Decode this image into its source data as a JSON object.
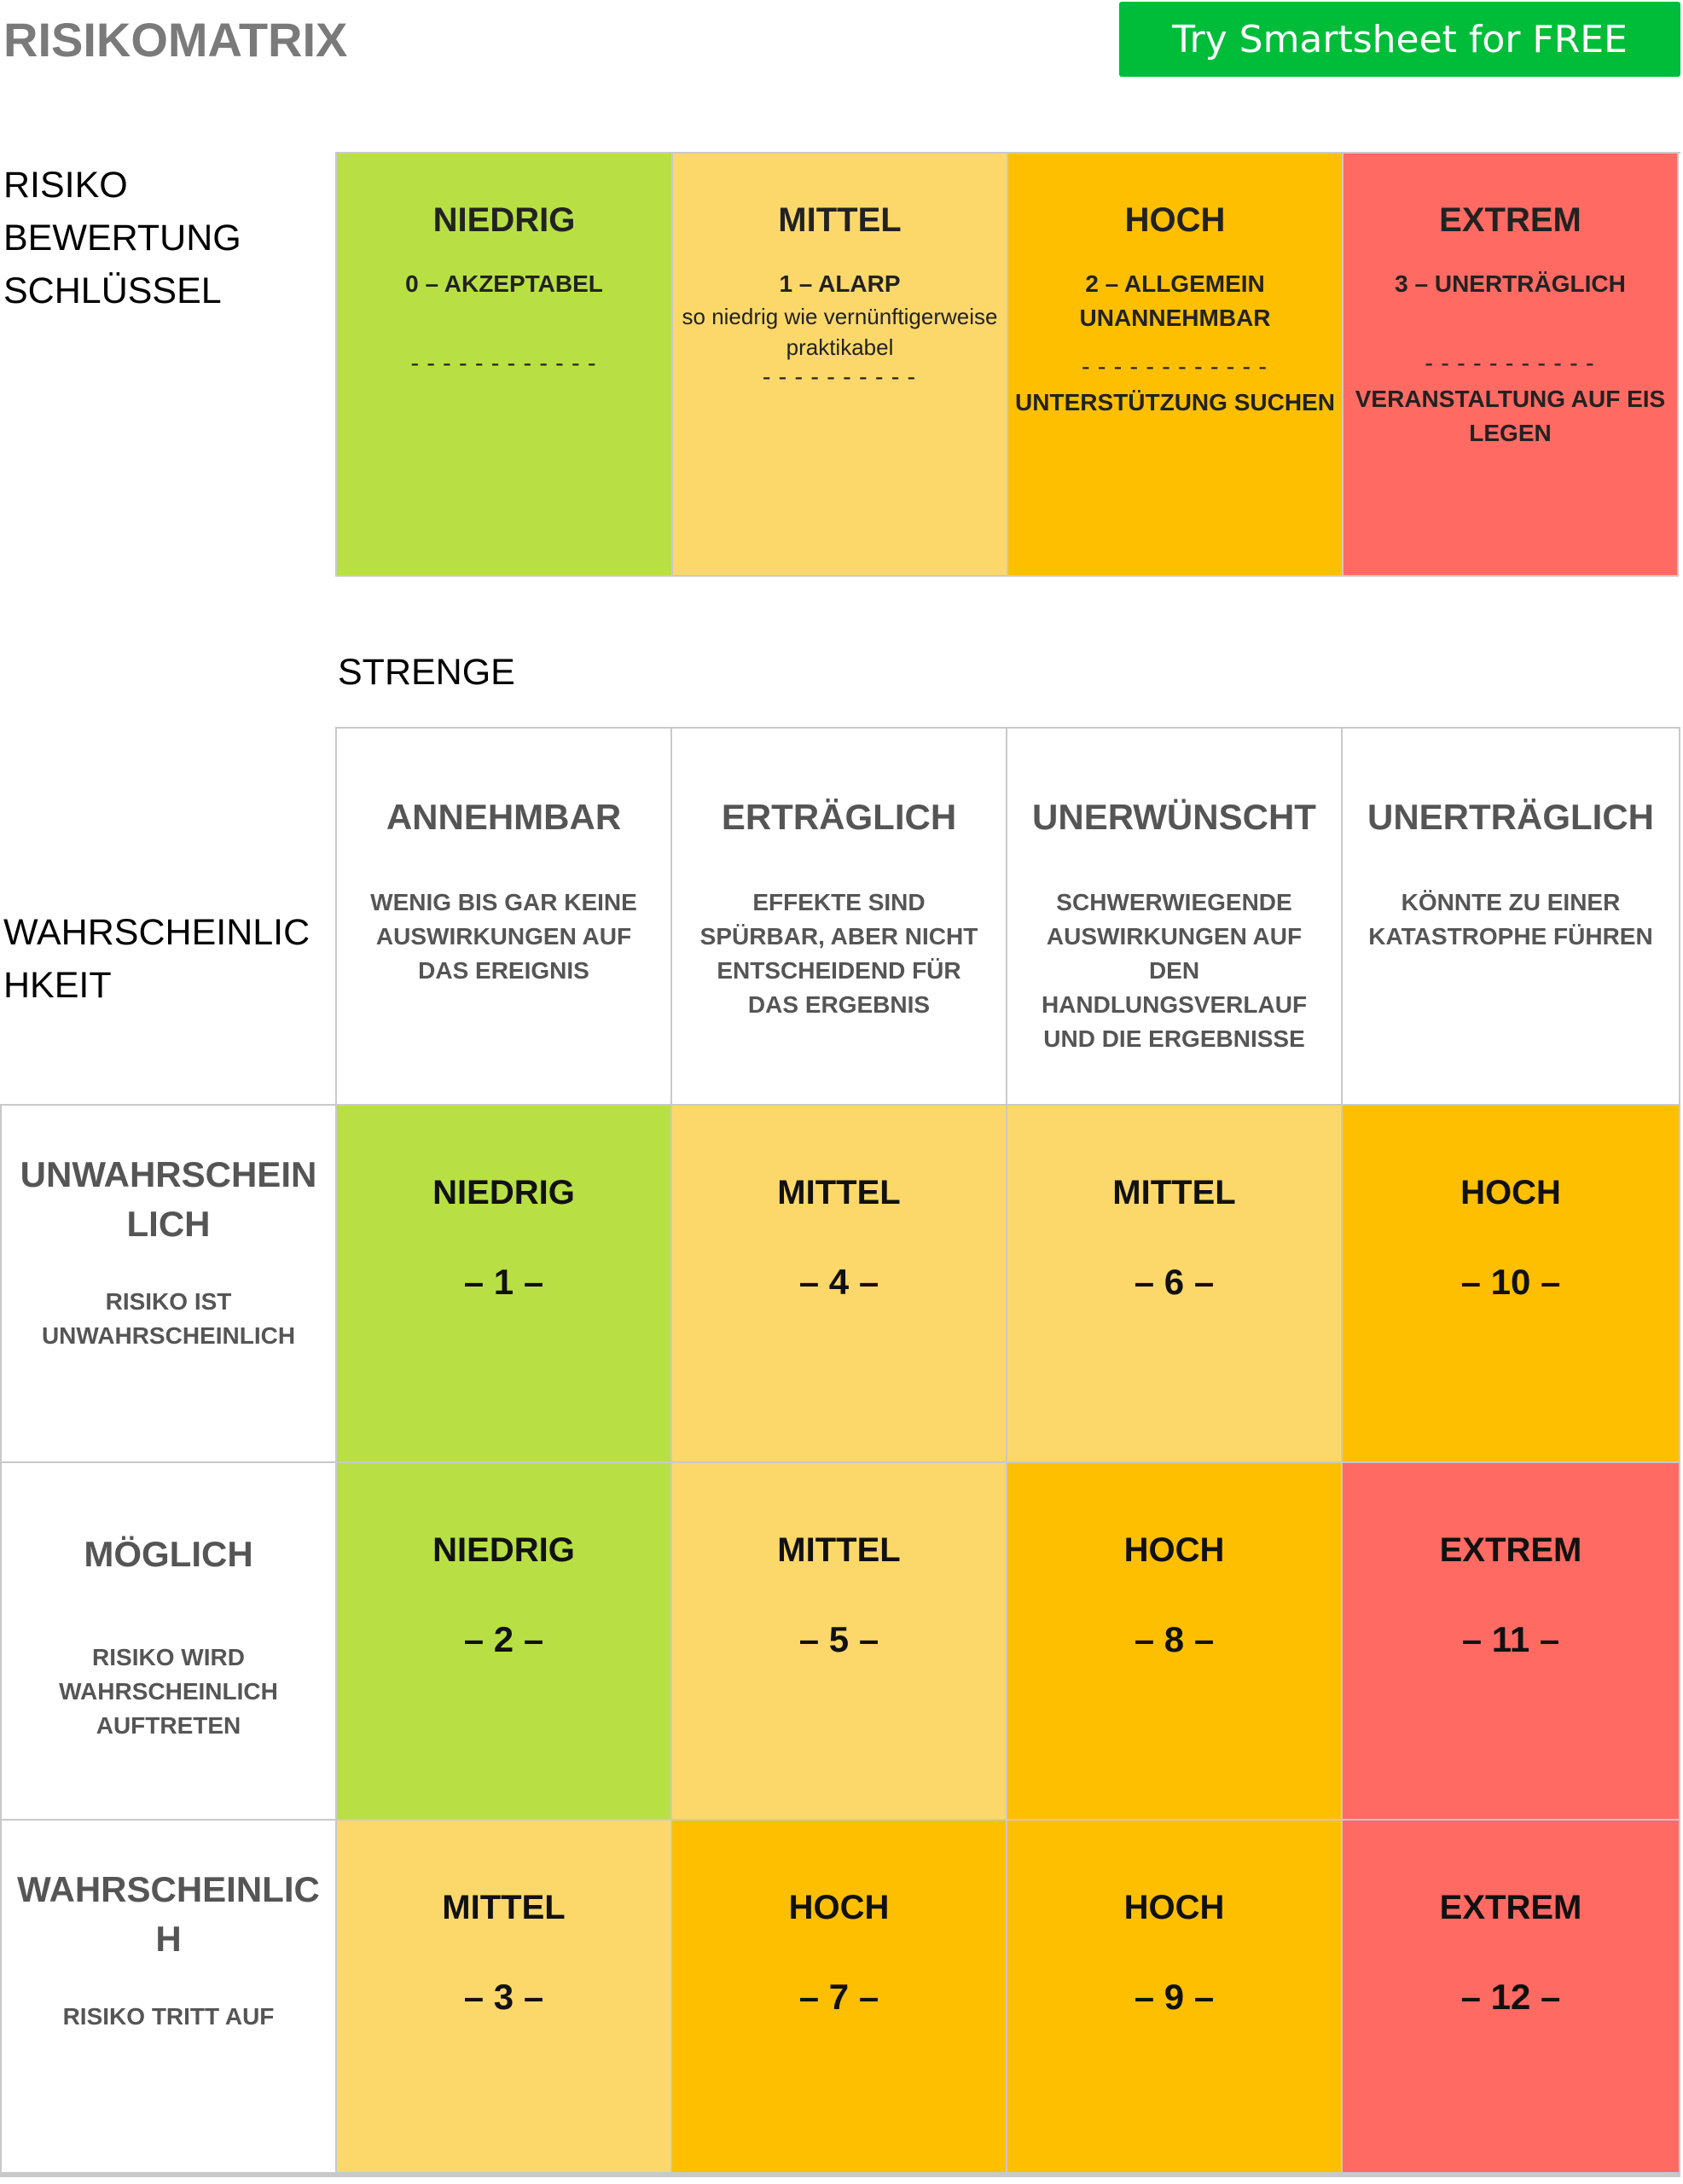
{
  "header": {
    "title": "RISIKOMATRIX",
    "cta_label": "Try Smartsheet for FREE"
  },
  "key_section": {
    "label": "RISIKO\nBEWERTUNG\nSCHLÜSSEL",
    "items": [
      {
        "title": "NIEDRIG",
        "subtitle": "0 – AKZEPTABEL",
        "note": "",
        "dash": "------------",
        "action": ""
      },
      {
        "title": "MITTEL",
        "subtitle": "1 – ALARP",
        "note": "so niedrig wie vernünftigerweise praktikabel",
        "dash": "----------",
        "action": ""
      },
      {
        "title": "HOCH",
        "subtitle": "2 – ALLGEMEIN UNANNEHMBAR",
        "note": "",
        "dash": "------------",
        "action": "UNTERSTÜTZUNG SUCHEN"
      },
      {
        "title": "EXTREM",
        "subtitle": "3 – UNERTRÄGLICH",
        "note": "",
        "dash": "-----------",
        "action": "VERANSTALTUNG AUF EIS LEGEN"
      }
    ]
  },
  "severity": {
    "label": "STRENGE",
    "columns": [
      {
        "title": "ANNEHMBAR",
        "desc": "WENIG BIS GAR KEINE AUSWIRKUNGEN AUF DAS EREIGNIS"
      },
      {
        "title": "ERTRÄGLICH",
        "desc": "EFFEKTE SIND SPÜRBAR, ABER NICHT ENTSCHEIDEND FÜR DAS ERGEBNIS"
      },
      {
        "title": "UNERWÜNSCHT",
        "desc": "SCHWERWIEGENDE AUSWIRKUNGEN AUF DEN HANDLUNGSVERLAUF UND DIE ERGEBNISSE"
      },
      {
        "title": "UNERTRÄGLICH",
        "desc": "KÖNNTE ZU EINER KATASTROPHE FÜHREN"
      }
    ]
  },
  "likelihood": {
    "label": "WAHRSCHEINLIC\nHKEIT",
    "rows": [
      {
        "title": "UNWAHRSCHEIN LICH",
        "desc": "RISIKO IST UNWAHRSCHEINLICH",
        "cells": [
          {
            "level": "NIEDRIG",
            "num": "– 1 –",
            "color": "#b8e045"
          },
          {
            "level": "MITTEL",
            "num": "– 4 –",
            "color": "#fcd86b"
          },
          {
            "level": "MITTEL",
            "num": "– 6 –",
            "color": "#fcd86b"
          },
          {
            "level": "HOCH",
            "num": "– 10 –",
            "color": "#fdbf00"
          }
        ]
      },
      {
        "title": "MÖGLICH",
        "desc": "RISIKO WIRD WAHRSCHEINLICH AUFTRETEN",
        "cells": [
          {
            "level": "NIEDRIG",
            "num": "– 2 –",
            "color": "#b8e045"
          },
          {
            "level": "MITTEL",
            "num": "– 5 –",
            "color": "#fcd86b"
          },
          {
            "level": "HOCH",
            "num": "– 8 –",
            "color": "#fdbf00"
          },
          {
            "level": "EXTREM",
            "num": "– 11 –",
            "color": "#ff6a63"
          }
        ]
      },
      {
        "title": "WAHRSCHEINLIC H",
        "desc": "RISIKO TRITT AUF",
        "cells": [
          {
            "level": "MITTEL",
            "num": "– 3 –",
            "color": "#fcd86b"
          },
          {
            "level": "HOCH",
            "num": "– 7 –",
            "color": "#fdbf00"
          },
          {
            "level": "HOCH",
            "num": "– 9 –",
            "color": "#fdbf00"
          },
          {
            "level": "EXTREM",
            "num": "– 12 –",
            "color": "#ff6a63"
          }
        ]
      }
    ]
  }
}
